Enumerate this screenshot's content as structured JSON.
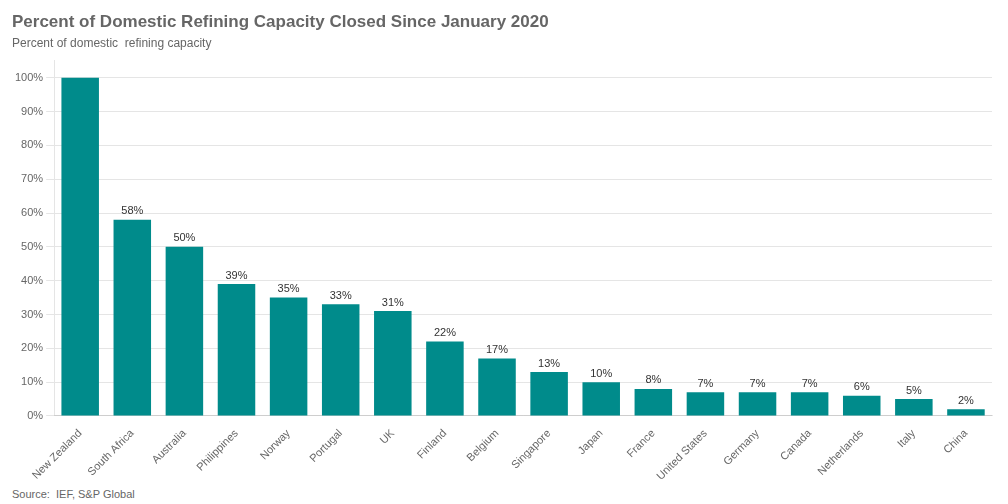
{
  "chart_data": {
    "type": "bar",
    "title": "Percent of Domestic Refining Capacity Closed Since January 2020",
    "subtitle": "Percent of domestic  refining capacity",
    "source": "Source:  IEF, S&P Global",
    "categories": [
      "New Zealand",
      "South Africa",
      "Australia",
      "Philippines",
      "Norway",
      "Portugal",
      "UK",
      "Finland",
      "Belgium",
      "Singapore",
      "Japan",
      "France",
      "United States",
      "Germany",
      "Canada",
      "Netherlands",
      "Italy",
      "China"
    ],
    "values": [
      100,
      58,
      50,
      39,
      35,
      33,
      31,
      22,
      17,
      13,
      10,
      8,
      7,
      7,
      7,
      6,
      5,
      2
    ],
    "value_labels": [
      null,
      "58%",
      "50%",
      "39%",
      "35%",
      "33%",
      "31%",
      "22%",
      "17%",
      "13%",
      "10%",
      "8%",
      "7%",
      "7%",
      "7%",
      "6%",
      "5%",
      "2%"
    ],
    "data_labels": true,
    "color": "#008B8B",
    "ylim": [
      0,
      105
    ],
    "yticks": [
      {
        "value": 0,
        "label": "0%"
      },
      {
        "value": 10,
        "label": "10%"
      },
      {
        "value": 20,
        "label": "20%"
      },
      {
        "value": 30,
        "label": "30%"
      },
      {
        "value": 40,
        "label": "40%"
      },
      {
        "value": 50,
        "label": "50%"
      },
      {
        "value": 60,
        "label": "60%"
      },
      {
        "value": 70,
        "label": "70%"
      },
      {
        "value": 80,
        "label": "80%"
      },
      {
        "value": 90,
        "label": "90%"
      },
      {
        "value": 100,
        "label": "100%"
      }
    ],
    "grid": true
  }
}
